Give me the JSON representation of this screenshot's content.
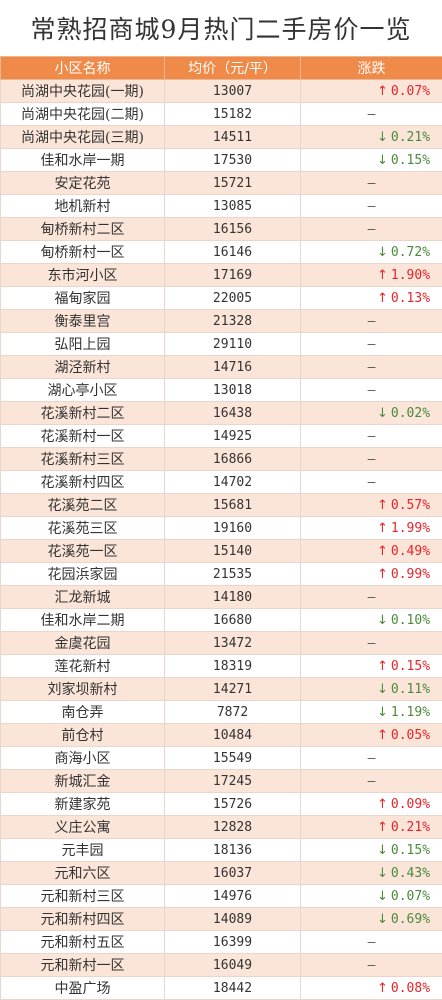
{
  "title": "常熟招商城9月热门二手房价一览",
  "colors": {
    "header_bg": "#f08a48",
    "stripe": "#fbe5d8",
    "up": "#e8242a",
    "down": "#4b8a3c"
  },
  "header": {
    "name": "小区名称",
    "price": "均价（元/平）",
    "change": "涨跌"
  },
  "rows": [
    {
      "name": "尚湖中央花园(一期)",
      "price": "13007",
      "dir": "up",
      "change": "0.07%"
    },
    {
      "name": "尚湖中央花园(二期)",
      "price": "15182",
      "dir": "flat",
      "change": "–"
    },
    {
      "name": "尚湖中央花园(三期)",
      "price": "14511",
      "dir": "down",
      "change": "0.21%"
    },
    {
      "name": "佳和水岸一期",
      "price": "17530",
      "dir": "down",
      "change": "0.15%"
    },
    {
      "name": "安定花苑",
      "price": "15721",
      "dir": "flat",
      "change": "–"
    },
    {
      "name": "地机新村",
      "price": "13085",
      "dir": "flat",
      "change": "–"
    },
    {
      "name": "甸桥新村二区",
      "price": "16156",
      "dir": "flat",
      "change": "–"
    },
    {
      "name": "甸桥新村一区",
      "price": "16146",
      "dir": "down",
      "change": "0.72%"
    },
    {
      "name": "东市河小区",
      "price": "17169",
      "dir": "up",
      "change": "1.90%"
    },
    {
      "name": "福甸家园",
      "price": "22005",
      "dir": "up",
      "change": "0.13%"
    },
    {
      "name": "衡泰里宫",
      "price": "21328",
      "dir": "flat",
      "change": "–"
    },
    {
      "name": "弘阳上园",
      "price": "29110",
      "dir": "flat",
      "change": "–"
    },
    {
      "name": "湖泾新村",
      "price": "14716",
      "dir": "flat",
      "change": "–"
    },
    {
      "name": "湖心亭小区",
      "price": "13018",
      "dir": "flat",
      "change": "–"
    },
    {
      "name": "花溪新村二区",
      "price": "16438",
      "dir": "down",
      "change": "0.02%"
    },
    {
      "name": "花溪新村一区",
      "price": "14925",
      "dir": "flat",
      "change": "–"
    },
    {
      "name": "花溪新村三区",
      "price": "16866",
      "dir": "flat",
      "change": "–"
    },
    {
      "name": "花溪新村四区",
      "price": "14702",
      "dir": "flat",
      "change": "–"
    },
    {
      "name": "花溪苑二区",
      "price": "15681",
      "dir": "up",
      "change": "0.57%"
    },
    {
      "name": "花溪苑三区",
      "price": "19160",
      "dir": "up",
      "change": "1.99%"
    },
    {
      "name": "花溪苑一区",
      "price": "15140",
      "dir": "up",
      "change": "0.49%"
    },
    {
      "name": "花园浜家园",
      "price": "21535",
      "dir": "up",
      "change": "0.99%"
    },
    {
      "name": "汇龙新城",
      "price": "14180",
      "dir": "flat",
      "change": "–"
    },
    {
      "name": "佳和水岸二期",
      "price": "16680",
      "dir": "down",
      "change": "0.10%"
    },
    {
      "name": "金虞花园",
      "price": "13472",
      "dir": "flat",
      "change": "–"
    },
    {
      "name": "莲花新村",
      "price": "18319",
      "dir": "up",
      "change": "0.15%"
    },
    {
      "name": "刘家坝新村",
      "price": "14271",
      "dir": "down",
      "change": "0.11%"
    },
    {
      "name": "南仓弄",
      "price": "7872",
      "dir": "down",
      "change": "1.19%"
    },
    {
      "name": "前仓村",
      "price": "10484",
      "dir": "up",
      "change": "0.05%"
    },
    {
      "name": "商海小区",
      "price": "15549",
      "dir": "flat",
      "change": "–"
    },
    {
      "name": "新城汇金",
      "price": "17245",
      "dir": "flat",
      "change": "–"
    },
    {
      "name": "新建家苑",
      "price": "15726",
      "dir": "up",
      "change": "0.09%"
    },
    {
      "name": "义庄公寓",
      "price": "12828",
      "dir": "up",
      "change": "0.21%"
    },
    {
      "name": "元丰园",
      "price": "18136",
      "dir": "down",
      "change": "0.15%"
    },
    {
      "name": "元和六区",
      "price": "16037",
      "dir": "down",
      "change": "0.43%"
    },
    {
      "name": "元和新村三区",
      "price": "14976",
      "dir": "down",
      "change": "0.07%"
    },
    {
      "name": "元和新村四区",
      "price": "14089",
      "dir": "down",
      "change": "0.69%"
    },
    {
      "name": "元和新村五区",
      "price": "16399",
      "dir": "flat",
      "change": "–"
    },
    {
      "name": "元和新村一区",
      "price": "16049",
      "dir": "flat",
      "change": "–"
    },
    {
      "name": "中盈广场",
      "price": "18442",
      "dir": "up",
      "change": "0.08%"
    }
  ]
}
